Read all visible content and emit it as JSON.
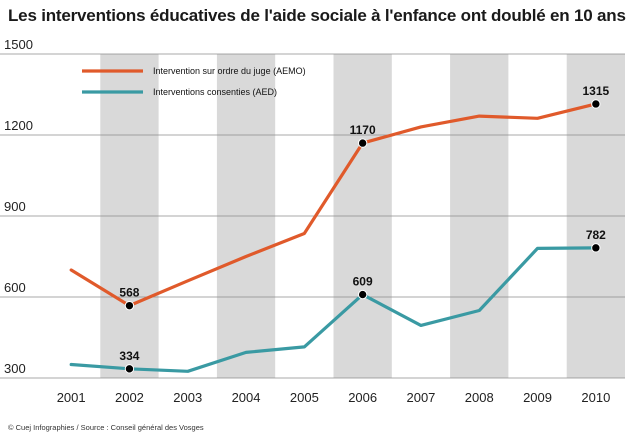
{
  "title": "Les interventions éducatives de l'aide sociale à l'enfance ont doublé en 10 ans",
  "credit": "© Cuej Infographies / Source : Conseil général des Vosges",
  "chart_data": {
    "type": "line",
    "x": [
      "2001",
      "2002",
      "2003",
      "2004",
      "2005",
      "2006",
      "2007",
      "2008",
      "2009",
      "2010"
    ],
    "ylim": [
      300,
      1500
    ],
    "yticks": [
      300,
      600,
      900,
      1200,
      1500
    ],
    "grid": true,
    "legend_position": "top-left",
    "series": [
      {
        "name": "Intervention sur ordre du juge (AEMO)",
        "color": "#e05a2b",
        "values": [
          700,
          568,
          660,
          750,
          835,
          1170,
          1230,
          1270,
          1262,
          1315
        ],
        "labeled": [
          1,
          5,
          9
        ],
        "labels": [
          "568",
          "1170",
          "1315"
        ]
      },
      {
        "name": "Interventions consenties (AED)",
        "color": "#3a9aa3",
        "values": [
          350,
          334,
          325,
          395,
          415,
          609,
          495,
          550,
          780,
          782
        ],
        "labeled": [
          1,
          5,
          9
        ],
        "labels": [
          "334",
          "609",
          "782"
        ]
      }
    ],
    "band_color": "#d9d9d9"
  }
}
